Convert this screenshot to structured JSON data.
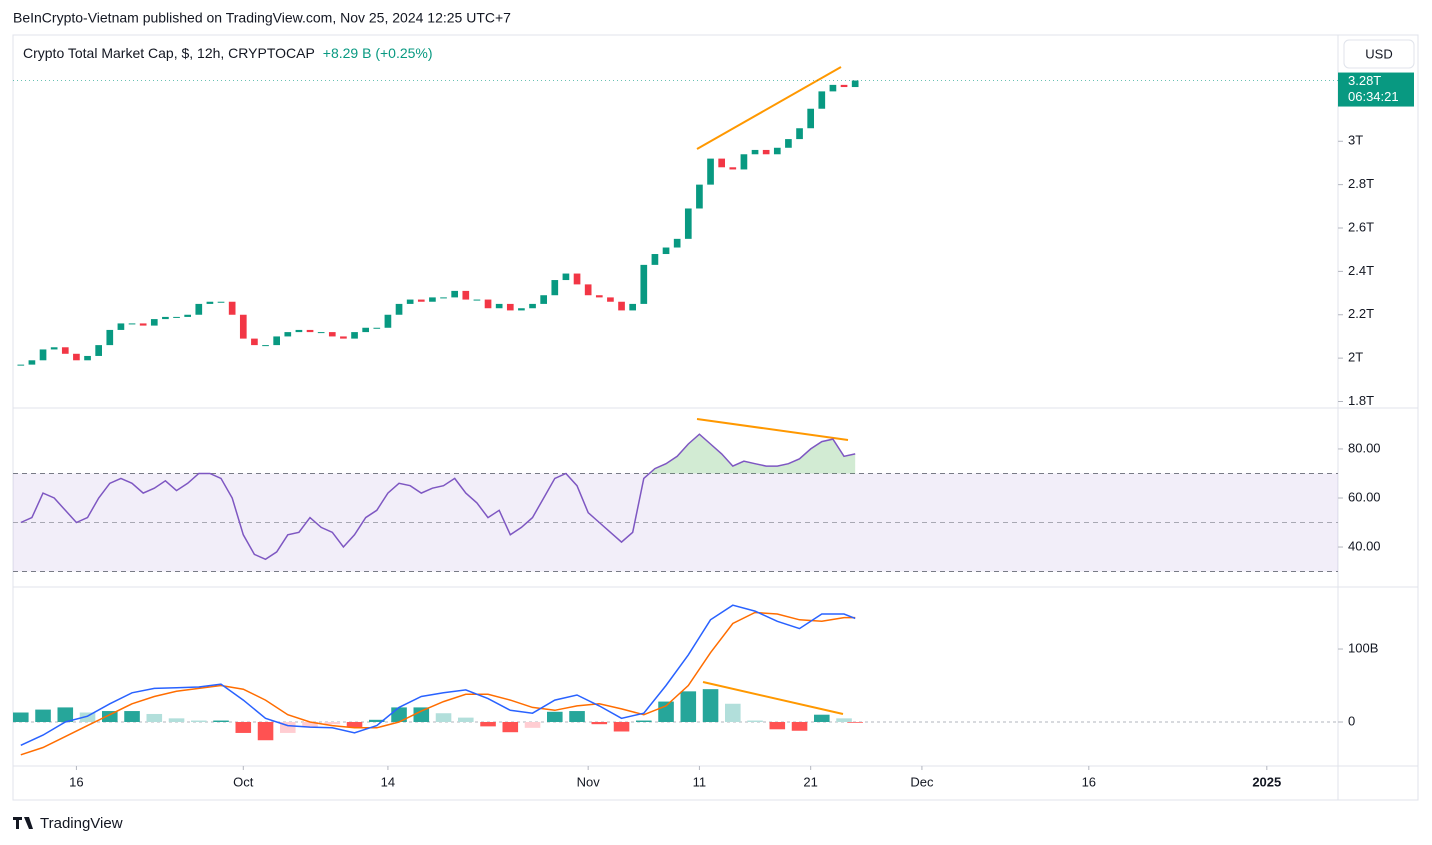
{
  "header": {
    "publisher": "BeInCrypto-Vietnam published on TradingView.com, Nov 25, 2024 12:25 UTC+7",
    "brand": "TradingView"
  },
  "chart_data": [
    {
      "type": "candlestick",
      "title": "Crypto Total Market Cap, $, 12h, CRYPTOCAP",
      "change": "+8.29 B (+0.25%)",
      "currency": "USD",
      "last_price_label": "3.28T",
      "countdown": "06:34:21",
      "up_color": "#089981",
      "down_color": "#f23645",
      "x": [
        255,
        256,
        257,
        258,
        259,
        260,
        261,
        262,
        263,
        264,
        265,
        266,
        267,
        268,
        269,
        270,
        271,
        272,
        273,
        274,
        275,
        276,
        277,
        278,
        279,
        280,
        281,
        282,
        283,
        284,
        285,
        286,
        287,
        288,
        289,
        290,
        291,
        292,
        293,
        294,
        295,
        296,
        297,
        298,
        299,
        300,
        301,
        302,
        303,
        304,
        305,
        306,
        307,
        308,
        309,
        310,
        311,
        312,
        313,
        314,
        315,
        316,
        317,
        318,
        319,
        320,
        321,
        322,
        323,
        324,
        325,
        326,
        327,
        328,
        329,
        330
      ],
      "values": [
        1.97,
        1.99,
        2.04,
        2.05,
        2.02,
        1.99,
        2.01,
        2.06,
        2.13,
        2.16,
        2.16,
        2.15,
        2.18,
        2.19,
        2.19,
        2.2,
        2.25,
        2.26,
        2.26,
        2.2,
        2.09,
        2.06,
        2.06,
        2.1,
        2.12,
        2.13,
        2.12,
        2.12,
        2.1,
        2.09,
        2.12,
        2.14,
        2.14,
        2.2,
        2.25,
        2.27,
        2.26,
        2.28,
        2.28,
        2.31,
        2.27,
        2.27,
        2.23,
        2.25,
        2.22,
        2.23,
        2.25,
        2.29,
        2.36,
        2.39,
        2.34,
        2.29,
        2.28,
        2.26,
        2.22,
        2.25,
        2.43,
        2.48,
        2.51,
        2.55,
        2.69,
        2.8,
        2.92,
        2.88,
        2.87,
        2.94,
        2.96,
        2.94,
        2.97,
        3.01,
        3.06,
        3.15,
        3.23,
        3.26,
        3.25,
        3.28
      ],
      "xlim": [
        254.3,
        373.4
      ],
      "xticks": [
        {
          "value": 260,
          "label": "16"
        },
        {
          "value": 275,
          "label": "Oct"
        },
        {
          "value": 288,
          "label": "14"
        },
        {
          "value": 306,
          "label": "Nov"
        },
        {
          "value": 316,
          "label": "11"
        },
        {
          "value": 326,
          "label": "21"
        },
        {
          "value": 336,
          "label": "Dec"
        },
        {
          "value": 351,
          "label": "16"
        },
        {
          "value": 367,
          "label": "2025"
        }
      ],
      "ylim": [
        1.77,
        3.49
      ],
      "yticks": [
        {
          "value": 1.8,
          "label": "1.8T"
        },
        {
          "value": 2,
          "label": "2T"
        },
        {
          "value": 2.2,
          "label": "2.2T"
        },
        {
          "value": 2.4,
          "label": "2.4T"
        },
        {
          "value": 2.6,
          "label": "2.6T"
        },
        {
          "value": 2.8,
          "label": "2.8T"
        },
        {
          "value": 3,
          "label": "3T"
        }
      ]
    },
    {
      "type": "rsi",
      "color": "#7e57c2",
      "x": [
        255,
        256,
        257,
        258,
        259,
        260,
        261,
        262,
        263,
        264,
        265,
        266,
        267,
        268,
        269,
        270,
        271,
        272,
        273,
        274,
        275,
        276,
        277,
        278,
        279,
        280,
        281,
        282,
        283,
        284,
        285,
        286,
        287,
        288,
        289,
        290,
        291,
        292,
        293,
        294,
        295,
        296,
        297,
        298,
        299,
        300,
        301,
        302,
        303,
        304,
        305,
        306,
        307,
        308,
        309,
        310,
        311,
        312,
        313,
        314,
        315,
        316,
        317,
        318,
        319,
        320,
        321,
        322,
        323,
        324,
        325,
        326,
        327,
        328,
        329,
        330
      ],
      "values": [
        50,
        52,
        62,
        60,
        55,
        50,
        52,
        60,
        66,
        68,
        66,
        62,
        64,
        67,
        63,
        66,
        70,
        70,
        68,
        60,
        45,
        37,
        35,
        38,
        45,
        46,
        52,
        48,
        46,
        40,
        45,
        52,
        55,
        62,
        66,
        65,
        62,
        64,
        65,
        68,
        62,
        58,
        52,
        55,
        45,
        48,
        52,
        60,
        68,
        70,
        65,
        54,
        50,
        46,
        42,
        46,
        68,
        72,
        74,
        77,
        82,
        86,
        82,
        78,
        73,
        75,
        74,
        73,
        73,
        74,
        76,
        80,
        83,
        84,
        77,
        78
      ],
      "bands": [
        30,
        70
      ],
      "midline": 50,
      "xlim": [
        254.3,
        373.4
      ],
      "ylim": [
        23.7,
        96.7
      ],
      "yticks": [
        {
          "value": 80,
          "label": "80.00"
        },
        {
          "value": 60,
          "label": "60.00"
        },
        {
          "value": 40,
          "label": "40.00"
        }
      ]
    },
    {
      "type": "macd",
      "macd_color": "#2962ff",
      "signal_color": "#ff6d00",
      "x": [
        255,
        257,
        259,
        261,
        263,
        265,
        267,
        269,
        271,
        273,
        275,
        277,
        279,
        281,
        283,
        285,
        287,
        289,
        291,
        293,
        295,
        297,
        299,
        301,
        303,
        305,
        307,
        309,
        311,
        313,
        315,
        317,
        319,
        321,
        323,
        325,
        327,
        329,
        330
      ],
      "macd": [
        -32,
        -18,
        0,
        8,
        25,
        40,
        46,
        47,
        48,
        52,
        30,
        5,
        -5,
        -7,
        -8,
        -15,
        -5,
        20,
        35,
        40,
        44,
        32,
        16,
        12,
        30,
        37,
        22,
        5,
        12,
        50,
        92,
        140,
        160,
        152,
        138,
        128,
        148,
        148,
        142
      ],
      "signal": [
        -45,
        -35,
        -20,
        -5,
        10,
        25,
        35,
        42,
        46,
        50,
        45,
        30,
        10,
        0,
        -5,
        -8,
        -8,
        0,
        15,
        28,
        38,
        38,
        30,
        20,
        16,
        22,
        25,
        18,
        10,
        22,
        50,
        95,
        135,
        150,
        148,
        140,
        138,
        143,
        143
      ],
      "histogram": [
        13,
        17,
        20,
        13,
        15,
        15,
        11,
        5,
        2,
        2,
        -15,
        -25,
        -15,
        -7,
        -3,
        -7,
        3,
        20,
        20,
        12,
        6,
        -6,
        -14,
        -8,
        14,
        15,
        -3,
        -13,
        2,
        28,
        42,
        45,
        25,
        2,
        -10,
        -12,
        10,
        5,
        -1
      ],
      "xlim": [
        254.3,
        373.4
      ],
      "ylim": [
        -60.3,
        185
      ],
      "yticks": [
        0,
        {
          "value": 100,
          "label": "100B"
        }
      ]
    }
  ]
}
